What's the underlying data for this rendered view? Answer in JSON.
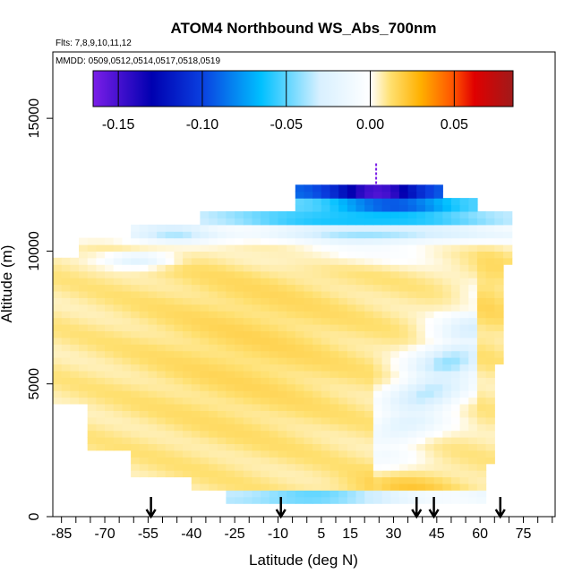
{
  "chart_data": {
    "type": "heatmap",
    "title": "ATOM4 Northbound WS_Abs_700nm",
    "subtitle_flights": "Flts: 7,8,9,10,11,12",
    "subtitle_dates": "MMDD: 0509,0512,0514,0517,0518,0519",
    "xlabel": "Latitude (deg N)",
    "ylabel": "Altitude (m)",
    "xlim": [
      -88,
      86
    ],
    "ylim": [
      0,
      17500
    ],
    "x_ticks": [
      "-85",
      "-70",
      "-55",
      "-40",
      "-25",
      "-10",
      "5",
      "15",
      "30",
      "45",
      "60",
      "75"
    ],
    "x_tick_values": [
      -85,
      -70,
      -55,
      -40,
      -25,
      -10,
      5,
      15,
      30,
      45,
      60,
      75
    ],
    "x_minor_every": 5,
    "y_ticks": [
      "0",
      "5000",
      "10000",
      "15000"
    ],
    "y_tick_values": [
      0,
      5000,
      10000,
      15000
    ],
    "colorbar": {
      "range": [
        -0.165,
        0.085
      ],
      "tick_labels": [
        "-0.15",
        "-0.10",
        "-0.05",
        "0.00",
        "0.05"
      ],
      "tick_values": [
        -0.15,
        -0.1,
        -0.05,
        0.0,
        0.05
      ],
      "colors": [
        "#7b1ee8",
        "#0000b0",
        "#0a40e0",
        "#00c0ff",
        "#d8f0ff",
        "#ffffff",
        "#ffe070",
        "#ffb000",
        "#ff5000",
        "#e00000",
        "#a01a1a"
      ]
    },
    "flight_arrow_latitudes": [
      -54,
      -9,
      38,
      44,
      67
    ],
    "regions": [
      {
        "name": "low-blue-band",
        "lat": [
          -27,
          67
        ],
        "alt": [
          500,
          1000
        ],
        "value": -0.04
      },
      {
        "name": "boundary-layer-orange",
        "lat": [
          12,
          60
        ],
        "alt": [
          700,
          1800
        ],
        "value": 0.01
      },
      {
        "name": "lower-troposphere-yellow",
        "lat": [
          -62,
          60
        ],
        "alt": [
          1000,
          5000
        ],
        "value": 0.005
      },
      {
        "name": "tropical-mid-yellow",
        "lat": [
          -40,
          40
        ],
        "alt": [
          5000,
          9000
        ],
        "value": 0.008
      },
      {
        "name": "northern-blue-streaks",
        "lat": [
          25,
          58
        ],
        "alt": [
          3000,
          8000
        ],
        "value": -0.03
      },
      {
        "name": "upper-blue-layer",
        "lat": [
          -25,
          67
        ],
        "alt": [
          10500,
          11500
        ],
        "value": -0.05
      },
      {
        "name": "tropopause-blue",
        "lat": [
          -36,
          58
        ],
        "alt": [
          11500,
          12000
        ],
        "value": -0.06
      },
      {
        "name": "top-dark-blue",
        "lat": [
          -3,
          46
        ],
        "alt": [
          12000,
          12500
        ],
        "value": -0.12
      }
    ]
  }
}
